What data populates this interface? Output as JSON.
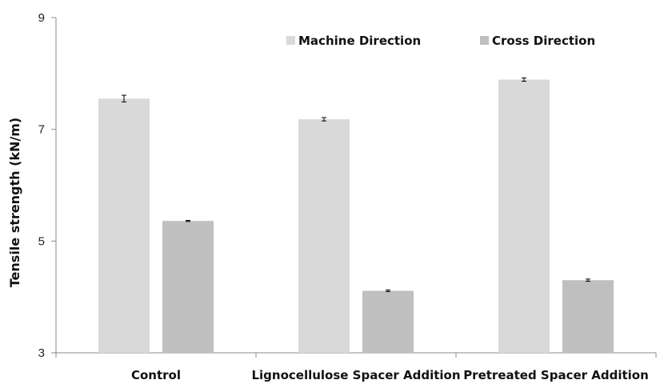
{
  "chart_data": {
    "type": "bar",
    "title": "",
    "xlabel": "",
    "ylabel": "Tensile strength (kN/m)",
    "ylim": [
      3,
      9
    ],
    "yticks": [
      3,
      5,
      7,
      9
    ],
    "grid": false,
    "legend_position": "top-right",
    "categories": [
      "Control",
      "Lignocellulose Spacer Addition",
      "Pretreated Spacer Addition"
    ],
    "series": [
      {
        "name": "Machine Direction",
        "color": "#d9d9d9",
        "values": [
          7.55,
          7.18,
          7.89
        ],
        "errors": [
          0.06,
          0.03,
          0.03
        ]
      },
      {
        "name": "Cross Direction",
        "color": "#bfbfbf",
        "values": [
          5.36,
          4.11,
          4.3
        ],
        "errors": [
          0.01,
          0.015,
          0.02
        ]
      }
    ]
  }
}
